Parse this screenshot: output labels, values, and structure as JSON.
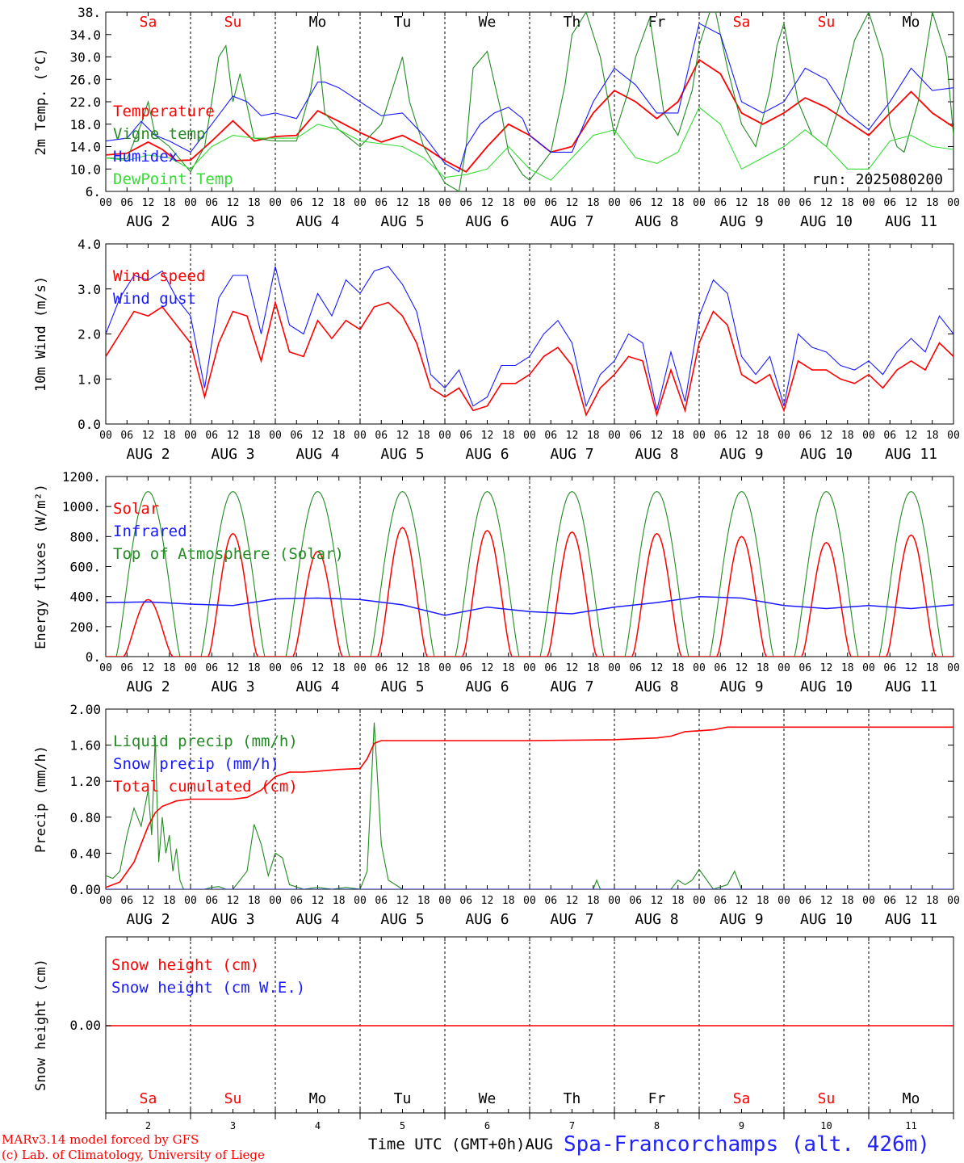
{
  "run_label": "run: 2025080200",
  "time_axis": {
    "hour_ticks": [
      "00",
      "06",
      "12",
      "18"
    ],
    "date_labels": [
      "AUG  2",
      "AUG  3",
      "AUG  4",
      "AUG  5",
      "AUG  6",
      "AUG  7",
      "AUG  8",
      "AUG  9",
      "AUG 10",
      "AUG 11"
    ],
    "day_numbers": [
      "2",
      "3",
      "4",
      "5",
      "6",
      "7",
      "8",
      "9",
      "10",
      "11"
    ],
    "weekdays": [
      "Sa",
      "Su",
      "Mo",
      "Tu",
      "We",
      "Th",
      "Fr",
      "Sa",
      "Su",
      "Mo"
    ],
    "weekend_flags": [
      true,
      true,
      false,
      false,
      false,
      false,
      false,
      true,
      true,
      false
    ],
    "xlabel": "Time UTC (GMT+0h)AUG"
  },
  "footer": {
    "credit_line1": "MARv3.14 model forced by GFS",
    "credit_line2": "(c) Lab. of Climatology, University of Liege",
    "station": "Spa-Francorchamps (alt. 426m)"
  },
  "colors": {
    "red": "#ff0000",
    "green": "#228b22",
    "blue": "#1a1aff",
    "lightgreen": "#33dd33",
    "grid": "#000000"
  },
  "chart_data": [
    {
      "type": "line",
      "ylabel": "2m Temp. (°C)",
      "ylim": [
        6,
        38
      ],
      "yticks": [
        "6.",
        "10.0",
        "14.0",
        "18.0",
        "22.0",
        "26.0",
        "30.0",
        "34.0",
        "38."
      ],
      "x_unit": "hours since 2 Aug 00 UTC",
      "series": [
        {
          "name": "Temperature",
          "color": "#ff0000",
          "x": [
            0,
            6,
            12,
            16,
            20,
            24,
            30,
            36,
            42,
            48,
            54,
            60,
            66,
            72,
            78,
            84,
            90,
            96,
            102,
            108,
            114,
            120,
            126,
            132,
            138,
            144,
            150,
            156,
            162,
            168,
            174,
            180,
            186,
            192,
            198,
            204,
            210,
            216,
            222,
            228,
            234,
            240
          ],
          "y": [
            12.5,
            12.8,
            14.8,
            13.5,
            11.5,
            11.6,
            15,
            18.6,
            15,
            15.8,
            16,
            20.4,
            18.5,
            16.5,
            14.8,
            16,
            14,
            11.5,
            9.5,
            14,
            18,
            16,
            13,
            14,
            20,
            24,
            22,
            19,
            22,
            29.5,
            27,
            20,
            18,
            20,
            22.7,
            21,
            18.5,
            16,
            20,
            23.8,
            20,
            17.5
          ]
        },
        {
          "name": "Vigne temp",
          "color": "#228b22",
          "x": [
            0,
            6,
            10,
            12,
            14,
            18,
            24,
            28,
            32,
            34,
            36,
            38,
            42,
            48,
            54,
            58,
            60,
            62,
            66,
            72,
            78,
            82,
            84,
            86,
            90,
            96,
            100,
            102,
            104,
            108,
            112,
            114,
            118,
            120,
            126,
            130,
            132,
            136,
            140,
            144,
            148,
            150,
            154,
            158,
            162,
            166,
            168,
            172,
            176,
            180,
            184,
            188,
            190,
            192,
            196,
            200,
            204,
            208,
            212,
            216,
            220,
            222,
            224,
            226,
            230,
            234,
            238,
            240
          ],
          "y": [
            12,
            11.8,
            18,
            22,
            16,
            14,
            9.5,
            14,
            30,
            32,
            22,
            27,
            15.5,
            15,
            15,
            24,
            32,
            20,
            17,
            14,
            18,
            26,
            30,
            22,
            14,
            7.5,
            6,
            14,
            28,
            31,
            20,
            13,
            9,
            8,
            13,
            25,
            34,
            38,
            30,
            16,
            24,
            30,
            37,
            20,
            16,
            24,
            32,
            40,
            28,
            18,
            14,
            24,
            32,
            36,
            22,
            16,
            14,
            22,
            33,
            38,
            30,
            18,
            14,
            13,
            22,
            38,
            30,
            16
          ]
        },
        {
          "name": "Humidex",
          "color": "#1a1aff",
          "x": [
            0,
            6,
            10,
            14,
            18,
            24,
            30,
            36,
            40,
            44,
            48,
            54,
            60,
            62,
            66,
            72,
            78,
            84,
            90,
            96,
            100,
            102,
            106,
            110,
            114,
            118,
            120,
            126,
            132,
            138,
            144,
            150,
            156,
            162,
            168,
            174,
            180,
            186,
            192,
            198,
            204,
            210,
            216,
            222,
            228,
            234,
            240
          ],
          "y": [
            15,
            15.5,
            18.5,
            16,
            15,
            13,
            18,
            23,
            22,
            19.5,
            20,
            19,
            25.5,
            25.5,
            24.5,
            22,
            19.5,
            20,
            16,
            11,
            9.5,
            14,
            18,
            20,
            21,
            19,
            16,
            13,
            13,
            22,
            28,
            25,
            20,
            20,
            36,
            34,
            22,
            20,
            22,
            28,
            26,
            20,
            17,
            22,
            28,
            24,
            24.5
          ]
        },
        {
          "name": "DewPoint Temp",
          "color": "#33dd33",
          "x": [
            0,
            6,
            12,
            18,
            24,
            30,
            36,
            42,
            48,
            54,
            60,
            66,
            72,
            78,
            84,
            90,
            96,
            102,
            108,
            114,
            120,
            126,
            132,
            138,
            144,
            150,
            156,
            162,
            168,
            174,
            180,
            186,
            192,
            198,
            204,
            210,
            216,
            222,
            228,
            234,
            240
          ],
          "y": [
            12,
            11.5,
            12.5,
            12,
            10,
            14,
            16,
            15.5,
            15.5,
            15.5,
            18,
            17,
            15,
            14.5,
            14,
            12,
            8.5,
            9,
            10,
            14,
            10,
            8,
            12,
            16,
            17,
            12,
            11,
            13,
            21,
            18,
            10,
            12,
            14,
            17,
            14,
            10,
            10,
            15,
            16,
            14,
            13.5
          ]
        }
      ]
    },
    {
      "type": "line",
      "ylabel": "10m Wind (m/s)",
      "ylim": [
        0,
        4
      ],
      "yticks": [
        "0.0",
        "1.0",
        "2.0",
        "3.0",
        "4.0"
      ],
      "series": [
        {
          "name": "Wind speed",
          "color": "#ff0000",
          "x": [
            0,
            4,
            8,
            12,
            16,
            20,
            24,
            28,
            32,
            36,
            40,
            44,
            48,
            52,
            56,
            60,
            64,
            68,
            72,
            76,
            80,
            84,
            88,
            92,
            96,
            100,
            104,
            108,
            112,
            116,
            120,
            124,
            128,
            132,
            136,
            140,
            144,
            148,
            152,
            156,
            160,
            164,
            168,
            172,
            176,
            180,
            184,
            188,
            192,
            196,
            200,
            204,
            208,
            212,
            216,
            220,
            224,
            228,
            232,
            236,
            240
          ],
          "y": [
            1.5,
            2.0,
            2.5,
            2.4,
            2.6,
            2.2,
            1.8,
            0.6,
            1.8,
            2.5,
            2.4,
            1.4,
            2.7,
            1.6,
            1.5,
            2.3,
            1.9,
            2.3,
            2.1,
            2.6,
            2.7,
            2.4,
            1.8,
            0.8,
            0.6,
            0.8,
            0.3,
            0.4,
            0.9,
            0.9,
            1.1,
            1.5,
            1.7,
            1.3,
            0.2,
            0.8,
            1.1,
            1.5,
            1.4,
            0.2,
            1.2,
            0.3,
            1.8,
            2.5,
            2.2,
            1.1,
            0.9,
            1.1,
            0.3,
            1.4,
            1.2,
            1.2,
            1.0,
            0.9,
            1.1,
            0.8,
            1.2,
            1.4,
            1.2,
            1.8,
            1.5
          ]
        },
        {
          "name": "Wind gust",
          "color": "#1a1aff",
          "x": [
            0,
            4,
            8,
            12,
            16,
            20,
            24,
            28,
            32,
            36,
            40,
            44,
            48,
            52,
            56,
            60,
            64,
            68,
            72,
            76,
            80,
            84,
            88,
            92,
            96,
            100,
            104,
            108,
            112,
            116,
            120,
            124,
            128,
            132,
            136,
            140,
            144,
            148,
            152,
            156,
            160,
            164,
            168,
            172,
            176,
            180,
            184,
            188,
            192,
            196,
            200,
            204,
            208,
            212,
            216,
            220,
            224,
            228,
            232,
            236,
            240
          ],
          "y": [
            2.0,
            2.8,
            3.3,
            3.2,
            3.4,
            2.8,
            2.4,
            0.8,
            2.8,
            3.3,
            3.3,
            2.0,
            3.5,
            2.2,
            2.0,
            2.9,
            2.4,
            3.2,
            2.9,
            3.4,
            3.5,
            3.1,
            2.5,
            1.1,
            0.8,
            1.2,
            0.4,
            0.6,
            1.3,
            1.3,
            1.5,
            2.0,
            2.3,
            1.8,
            0.4,
            1.1,
            1.4,
            2.0,
            1.8,
            0.3,
            1.6,
            0.5,
            2.4,
            3.2,
            2.9,
            1.5,
            1.1,
            1.5,
            0.4,
            2.0,
            1.7,
            1.6,
            1.3,
            1.2,
            1.4,
            1.1,
            1.6,
            1.9,
            1.6,
            2.4,
            2.0
          ]
        }
      ]
    },
    {
      "type": "line",
      "ylabel": "Energy fluxes (W/m²)",
      "ylim": [
        0,
        1200
      ],
      "yticks": [
        "0.",
        "200.",
        "400.",
        "600.",
        "800.",
        "1000.",
        "1200."
      ],
      "series": [
        {
          "name": "Solar",
          "color": "#ff0000",
          "peaks": [
            380,
            820,
            700,
            860,
            840,
            830,
            820,
            800,
            760,
            810
          ]
        },
        {
          "name": "Infrared",
          "color": "#1a1aff",
          "x": [
            0,
            12,
            24,
            36,
            48,
            60,
            72,
            84,
            96,
            108,
            120,
            132,
            144,
            156,
            168,
            180,
            192,
            204,
            216,
            228,
            240
          ],
          "y": [
            360,
            365,
            350,
            340,
            385,
            390,
            380,
            345,
            275,
            330,
            300,
            285,
            330,
            360,
            400,
            390,
            340,
            320,
            340,
            320,
            345
          ]
        },
        {
          "name": "Top of Atmosphere (Solar)",
          "color": "#228b22",
          "peak": 1100
        }
      ]
    },
    {
      "type": "line",
      "ylabel": "Precip (mm/h)",
      "ylim": [
        0,
        2
      ],
      "yticks": [
        "0.00",
        "0.40",
        "0.80",
        "1.20",
        "1.60",
        "2.00"
      ],
      "series": [
        {
          "name": "Liquid precip (mm/h)",
          "color": "#228b22",
          "x": [
            0,
            2,
            4,
            6,
            8,
            10,
            12,
            13,
            14,
            15,
            16,
            17,
            18,
            19,
            20,
            21,
            22,
            24,
            26,
            28,
            30,
            32,
            34,
            36,
            40,
            42,
            44,
            46,
            48,
            50,
            52,
            56,
            60,
            64,
            68,
            72,
            74,
            76,
            78,
            80,
            84,
            96,
            120,
            138,
            139,
            140,
            156,
            160,
            162,
            164,
            166,
            168,
            172,
            176,
            178,
            180,
            200,
            240
          ],
          "y": [
            0.15,
            0.12,
            0.2,
            0.6,
            0.9,
            0.7,
            1.1,
            0.6,
            1.7,
            0.3,
            0.8,
            0.4,
            0.6,
            0.2,
            0.45,
            0.1,
            0.0,
            0.0,
            0.0,
            0.0,
            0.02,
            0.03,
            0.0,
            0.0,
            0.2,
            0.72,
            0.5,
            0.15,
            0.4,
            0.35,
            0.05,
            0.0,
            0.02,
            0.0,
            0.02,
            0.0,
            0.2,
            1.85,
            0.5,
            0.1,
            0.0,
            0.0,
            0.0,
            0.0,
            0.1,
            0.0,
            0.0,
            0.0,
            0.1,
            0.05,
            0.1,
            0.22,
            0.0,
            0.05,
            0.2,
            0.0,
            0.0,
            0.0
          ]
        },
        {
          "name": "Snow precip (mm/h)",
          "color": "#1a1aff",
          "x": [
            0,
            240
          ],
          "y": [
            0,
            0
          ]
        },
        {
          "name": "Total cumulated (cm)",
          "color": "#ff0000",
          "x": [
            0,
            4,
            8,
            12,
            14,
            16,
            20,
            24,
            30,
            36,
            40,
            44,
            48,
            52,
            56,
            60,
            66,
            72,
            74,
            76,
            78,
            84,
            120,
            144,
            156,
            160,
            164,
            168,
            172,
            176,
            180,
            240
          ],
          "y": [
            0.02,
            0.08,
            0.3,
            0.7,
            0.85,
            0.92,
            0.98,
            1.0,
            1.0,
            1.0,
            1.02,
            1.1,
            1.25,
            1.3,
            1.3,
            1.31,
            1.33,
            1.34,
            1.45,
            1.62,
            1.65,
            1.65,
            1.65,
            1.66,
            1.68,
            1.7,
            1.75,
            1.76,
            1.77,
            1.8,
            1.8,
            1.8
          ]
        }
      ]
    },
    {
      "type": "line",
      "ylabel": "Snow height (cm)",
      "yticks": [
        "0.00"
      ],
      "series": [
        {
          "name": "Snow height (cm)",
          "color": "#ff0000",
          "x": [
            0,
            240
          ],
          "y": [
            0,
            0
          ]
        },
        {
          "name": "Snow height (cm W.E.)",
          "color": "#1a1aff",
          "x": [
            0,
            240
          ],
          "y": [
            0,
            0
          ]
        }
      ]
    }
  ]
}
